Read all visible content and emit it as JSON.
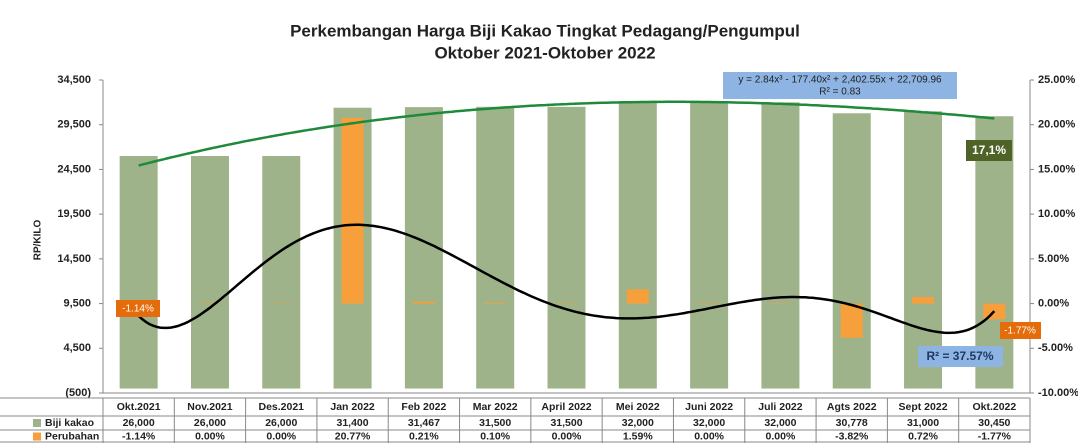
{
  "chart_data": {
    "type": "bar",
    "title": "Perkembangan Harga Biji Kakao  Tingkat Pedagang/Pengumpul",
    "subtitle": "Oktober  2021-Oktober 2022",
    "y_label": "RP/KILO",
    "categories": [
      "Okt.2021",
      "Nov.2021",
      "Des.2021",
      "Jan 2022",
      "Feb 2022",
      "Mar 2022",
      "April 2022",
      "Mei 2022",
      "Juni 2022",
      "Juli 2022",
      "Agts 2022",
      "Sept 2022",
      "Okt.2022"
    ],
    "series": [
      {
        "name": "Biji kakao",
        "color": "#9fb38a",
        "values": [
          26000,
          26000,
          26000,
          31400,
          31467,
          31500,
          31500,
          32000,
          32000,
          32000,
          30778,
          31000,
          30450
        ],
        "value_labels": [
          "26,000",
          "26,000",
          "26,000",
          "31,400",
          "31,467",
          "31,500",
          "31,500",
          "32,000",
          "32,000",
          "32,000",
          "30,778",
          "31,000",
          "30,450"
        ]
      },
      {
        "name": "Perubahan",
        "color": "#f7a03b",
        "axis": "y2",
        "values": [
          -1.14,
          0,
          0,
          20.77,
          0.21,
          0.1,
          0,
          1.59,
          0,
          0,
          -3.82,
          0.72,
          -1.77
        ],
        "value_labels": [
          "-1.14%",
          "0.00%",
          "0.00%",
          "20.77%",
          "0.21%",
          "0.10%",
          "0.00%",
          "1.59%",
          "0.00%",
          "0.00%",
          "-3.82%",
          "0.72%",
          "-1.77%"
        ]
      }
    ],
    "ylim": [
      -500,
      34500
    ],
    "yticks": [
      {
        "value": -500,
        "label": "(500)"
      },
      {
        "value": 4500,
        "label": "4,500"
      },
      {
        "value": 9500,
        "label": "9,500"
      },
      {
        "value": 14500,
        "label": "14,500"
      },
      {
        "value": 19500,
        "label": "19,500"
      },
      {
        "value": 24500,
        "label": "24,500"
      },
      {
        "value": 29500,
        "label": "29,500"
      },
      {
        "value": 34500,
        "label": "34,500"
      }
    ],
    "y2lim": [
      -10,
      25
    ],
    "y2ticks": [
      {
        "value": -10,
        "label": "-10.00%"
      },
      {
        "value": -5,
        "label": "-5.00%"
      },
      {
        "value": 0,
        "label": "0.00%"
      },
      {
        "value": 5,
        "label": "5.00%"
      },
      {
        "value": 10,
        "label": "10.00%"
      },
      {
        "value": 15,
        "label": "15.00%"
      },
      {
        "value": 20,
        "label": "20.00%"
      },
      {
        "value": 25,
        "label": "25.00%"
      }
    ],
    "grid": false,
    "annotations": {
      "equation": "y = 2.84x³ - 177.40x² + 2,402.55x + 22,709.96",
      "r2_price": "R² = 0.83",
      "last_change": "17,1%",
      "first_label": "-1.14%",
      "last_label": "-1.77%",
      "r2_change": "R² = 37.57%"
    }
  }
}
